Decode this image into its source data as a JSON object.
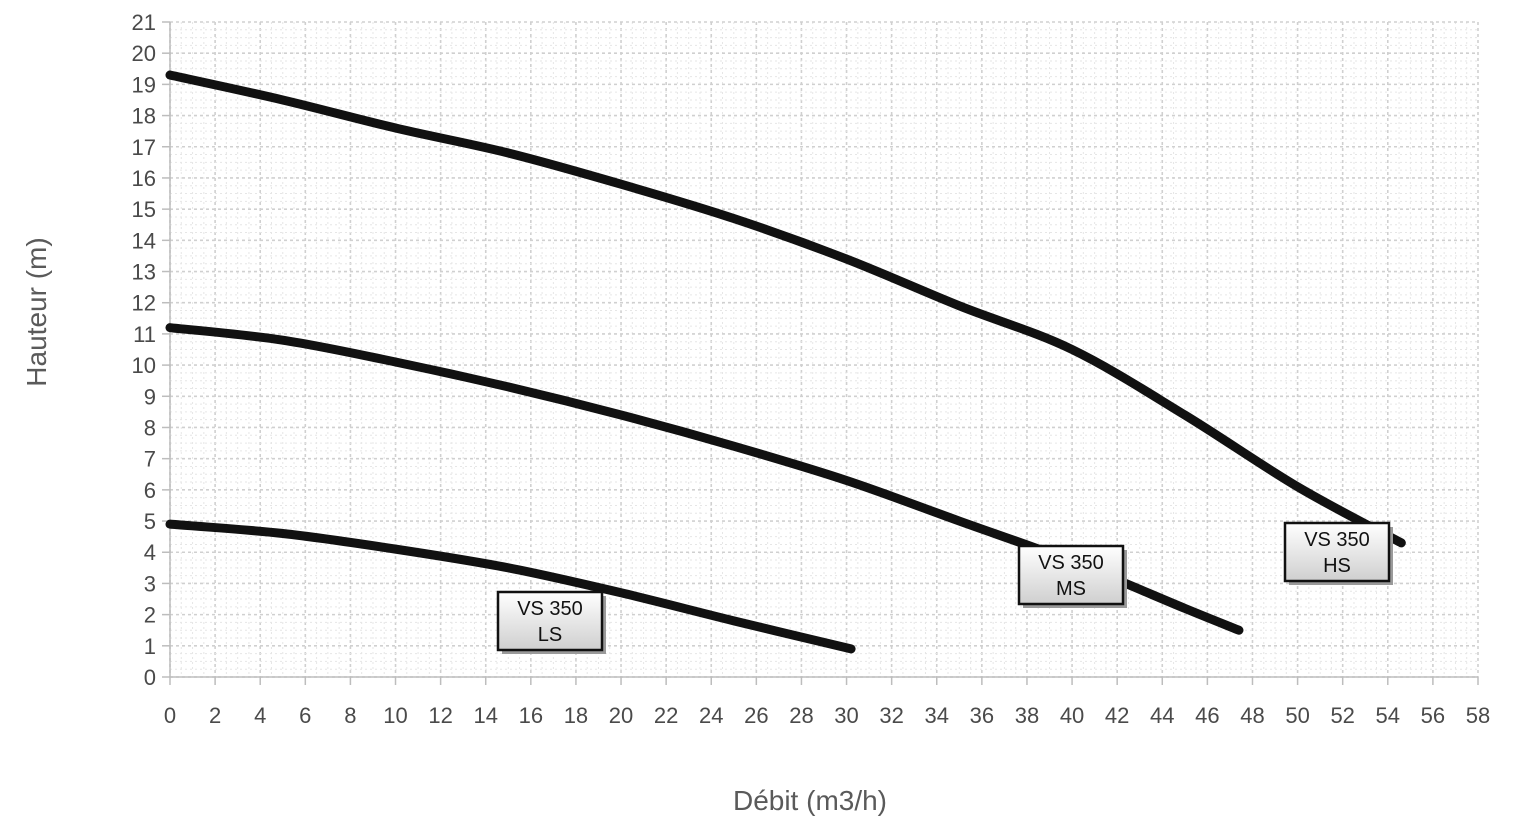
{
  "chart_data": {
    "type": "line",
    "title": "",
    "xlabel": "Débit (m3/h)",
    "ylabel": "Hauteur (m)",
    "xlim": [
      0,
      58
    ],
    "ylim": [
      0,
      21
    ],
    "x_ticks": [
      0,
      2,
      4,
      6,
      8,
      10,
      12,
      14,
      16,
      18,
      20,
      22,
      24,
      26,
      28,
      30,
      32,
      34,
      36,
      38,
      40,
      42,
      44,
      46,
      48,
      50,
      52,
      54,
      56,
      58
    ],
    "y_ticks": [
      0,
      1,
      2,
      3,
      4,
      5,
      6,
      7,
      8,
      9,
      10,
      11,
      12,
      13,
      14,
      15,
      16,
      17,
      18,
      19,
      20,
      21
    ],
    "grid": true,
    "series": [
      {
        "name": "VS 350 HS",
        "label_lines": [
          "VS 350",
          "HS"
        ],
        "x": [
          0,
          5,
          10,
          15,
          20,
          25,
          30,
          35,
          40,
          45,
          50,
          54.6
        ],
        "y": [
          19.3,
          18.5,
          17.6,
          16.8,
          15.8,
          14.7,
          13.4,
          11.9,
          10.5,
          8.4,
          6.1,
          4.3
        ]
      },
      {
        "name": "VS 350 MS",
        "label_lines": [
          "VS 350",
          "MS"
        ],
        "x": [
          0,
          5,
          10,
          15,
          20,
          25,
          30,
          35,
          40,
          45,
          47.4
        ],
        "y": [
          11.2,
          10.8,
          10.1,
          9.3,
          8.4,
          7.4,
          6.3,
          5.0,
          3.7,
          2.2,
          1.5
        ]
      },
      {
        "name": "VS 350 LS",
        "label_lines": [
          "VS 350",
          "LS"
        ],
        "x": [
          0,
          5,
          10,
          15,
          20,
          25,
          30.2
        ],
        "y": [
          4.9,
          4.6,
          4.1,
          3.5,
          2.7,
          1.8,
          0.9
        ]
      }
    ]
  }
}
